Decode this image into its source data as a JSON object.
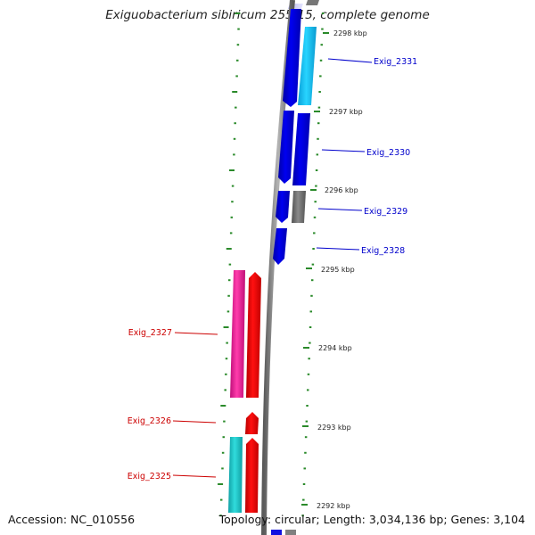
{
  "header": {
    "title": "Exiguobacterium sibiricum 255-15, complete genome"
  },
  "footer": {
    "accession": "Accession: NC_010556",
    "summary": "Topology: circular; Length: 3,034,136 bp; Genes: 3,104"
  },
  "colors": {
    "forward_gene": "#0000ee",
    "forward_cds_alt": "#1ec8f0",
    "reverse_gene": "#ee0000",
    "reverse_cds_alt": "#e6289a",
    "reverse_cds_teal": "#20c4c8",
    "gray_feature": "#707070",
    "tick": "#2a8a2a",
    "backbone": "#8c8c8c",
    "forward_label": "#0000cc",
    "reverse_label": "#cc0000"
  },
  "scale_labels": [
    "2298 kbp",
    "2297 kbp",
    "2296 kbp",
    "2295 kbp",
    "2294 kbp",
    "2293 kbp",
    "2292 kbp"
  ],
  "forward_genes": [
    {
      "label": "Exig_2331"
    },
    {
      "label": "Exig_2330"
    },
    {
      "label": "Exig_2329"
    },
    {
      "label": "Exig_2328"
    }
  ],
  "reverse_genes": [
    {
      "label": "Exig_2327"
    },
    {
      "label": "Exig_2326"
    },
    {
      "label": "Exig_2325"
    }
  ]
}
